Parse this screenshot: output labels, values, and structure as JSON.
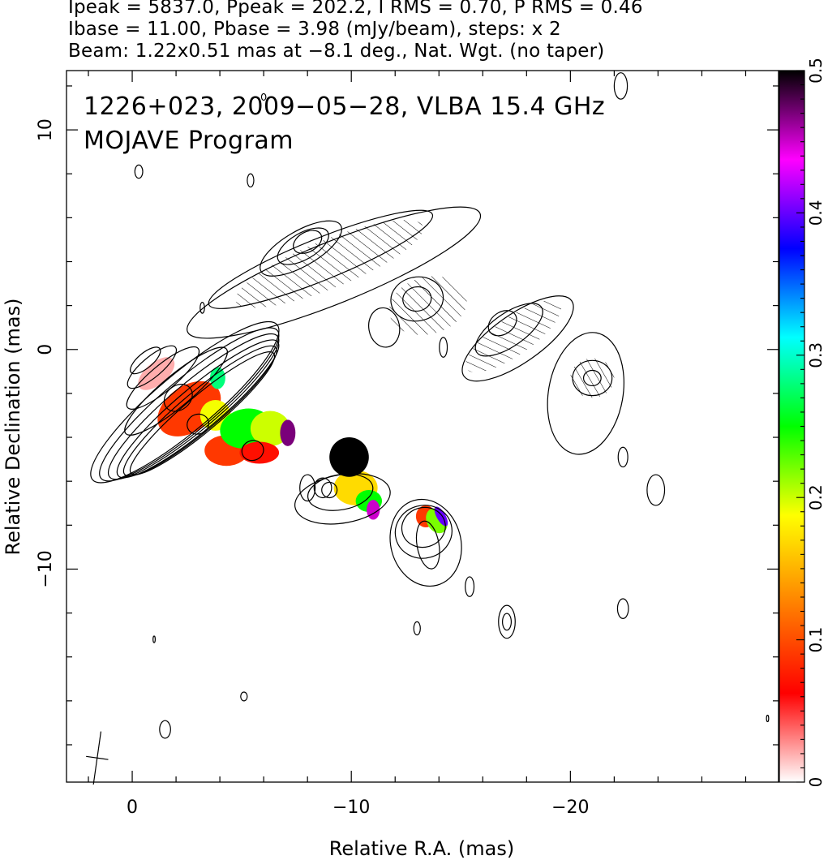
{
  "header": {
    "line1": "Ipeak = 5837.0, Ppeak = 202.2, I RMS = 0.70, P RMS = 0.46",
    "line2": "Ibase = 11.00, Pbase = 3.98 (mJy/beam), steps: x 2",
    "line3": "Beam: 1.22x0.51 mas at −8.1 deg., Nat. Wgt. (no taper)"
  },
  "chart_data": {
    "type": "heatmap",
    "title_line1": "1226+023, 2009−05−28, VLBA 15.4 GHz",
    "title_line2": "MOJAVE Program",
    "xlabel": "Relative R.A. (mas)",
    "ylabel": "Relative Declination (mas)",
    "xlim": [
      3,
      -29.5
    ],
    "ylim": [
      -19.7,
      12.7
    ],
    "x_ticks": [
      {
        "value": 0,
        "label": "0"
      },
      {
        "value": -10,
        "label": "−10"
      },
      {
        "value": -20,
        "label": "−20"
      }
    ],
    "y_ticks": [
      {
        "value": 10,
        "label": "10"
      },
      {
        "value": 0,
        "label": "0"
      },
      {
        "value": -10,
        "label": "−10"
      }
    ],
    "colorbar": {
      "range": [
        0,
        0.5
      ],
      "ticks": [
        {
          "value": 0,
          "label": "0"
        },
        {
          "value": 0.1,
          "label": "0.1"
        },
        {
          "value": 0.2,
          "label": "0.2"
        },
        {
          "value": 0.3,
          "label": "0.3"
        },
        {
          "value": 0.4,
          "label": "0.4"
        },
        {
          "value": 0.5,
          "label": "0.5"
        }
      ],
      "colors": [
        "#ffffff",
        "#ff0000",
        "#ff8000",
        "#ffff00",
        "#00ff00",
        "#00ffff",
        "#0000ff",
        "#ff00ff",
        "#000000"
      ]
    },
    "main_jet_contours": [
      {
        "cx": -2.4,
        "cy": -2.4,
        "rx": 5.5,
        "ry": 1.3,
        "angle": -40
      },
      {
        "cx": -2.6,
        "cy": -2.5,
        "rx": 5.25,
        "ry": 1.18,
        "angle": -40
      },
      {
        "cx": -2.8,
        "cy": -2.6,
        "rx": 5.0,
        "ry": 1.07,
        "angle": -40
      },
      {
        "cx": -3.0,
        "cy": -2.7,
        "rx": 4.75,
        "ry": 0.97,
        "angle": -40
      },
      {
        "cx": -3.1,
        "cy": -2.8,
        "rx": 4.5,
        "ry": 0.88,
        "angle": -40
      },
      {
        "cx": -3.2,
        "cy": -2.9,
        "rx": 4.25,
        "ry": 0.8,
        "angle": -40
      },
      {
        "cx": -2.0,
        "cy": -1.9,
        "rx": 3.0,
        "ry": 0.7,
        "angle": -40
      },
      {
        "cx": -1.4,
        "cy": -1.3,
        "rx": 2.1,
        "ry": 0.58,
        "angle": -40
      },
      {
        "cx": -0.9,
        "cy": -0.8,
        "rx": 1.4,
        "ry": 0.46,
        "angle": -40
      },
      {
        "cx": -0.6,
        "cy": -0.5,
        "rx": 0.85,
        "ry": 0.34,
        "angle": -40
      },
      {
        "cx": -2.1,
        "cy": -2.2,
        "rx": 0.7,
        "ry": 0.55,
        "angle": -40
      },
      {
        "cx": -3.0,
        "cy": -3.4,
        "rx": 0.5,
        "ry": 0.45,
        "angle": -20
      },
      {
        "cx": -5.5,
        "cy": -4.6,
        "rx": 0.5,
        "ry": 0.45,
        "angle": -20
      }
    ],
    "upper_jet_contours": [
      {
        "cx": -9.2,
        "cy": 3.5,
        "rx": 7.2,
        "ry": 1.4,
        "angle": -22
      },
      {
        "cx": -8.6,
        "cy": 4.1,
        "rx": 5.5,
        "ry": 0.95,
        "angle": -22
      },
      {
        "cx": -7.7,
        "cy": 4.6,
        "rx": 2.1,
        "ry": 0.8,
        "angle": -30
      },
      {
        "cx": -7.8,
        "cy": 4.7,
        "rx": 1.3,
        "ry": 0.6,
        "angle": -30
      },
      {
        "cx": -8.0,
        "cy": 4.9,
        "rx": 0.7,
        "ry": 0.45,
        "angle": -30
      },
      {
        "cx": -13.0,
        "cy": 2.3,
        "rx": 1.2,
        "ry": 1.0,
        "angle": -10
      },
      {
        "cx": -13.0,
        "cy": 2.3,
        "rx": 0.65,
        "ry": 0.55,
        "angle": -10
      },
      {
        "cx": -11.5,
        "cy": 1.0,
        "rx": 0.7,
        "ry": 0.9,
        "angle": -10
      },
      {
        "cx": -17.6,
        "cy": 0.5,
        "rx": 3.0,
        "ry": 1.1,
        "angle": -35
      },
      {
        "cx": -17.2,
        "cy": 0.9,
        "rx": 1.8,
        "ry": 0.75,
        "angle": -35
      },
      {
        "cx": -16.9,
        "cy": 1.2,
        "rx": 0.7,
        "ry": 0.5,
        "angle": -35
      },
      {
        "cx": -20.7,
        "cy": -2.0,
        "rx": 1.7,
        "ry": 2.8,
        "angle": 10
      },
      {
        "cx": -21.0,
        "cy": -1.3,
        "rx": 0.9,
        "ry": 0.8,
        "angle": 0
      },
      {
        "cx": -21.0,
        "cy": -1.3,
        "rx": 0.4,
        "ry": 0.35,
        "angle": 0
      }
    ],
    "middle_knot_contours": [
      {
        "cx": -9.6,
        "cy": -6.8,
        "rx": 2.2,
        "ry": 1.1,
        "angle": -10
      },
      {
        "cx": -9.5,
        "cy": -6.5,
        "rx": 1.5,
        "ry": 0.8,
        "angle": -10
      },
      {
        "cx": -9.0,
        "cy": -6.4,
        "rx": 0.35,
        "ry": 0.35,
        "angle": 0
      },
      {
        "cx": -8.0,
        "cy": -6.3,
        "rx": 0.35,
        "ry": 0.6,
        "angle": 0
      }
    ],
    "lower_knot_contours": [
      {
        "cx": -13.4,
        "cy": -8.8,
        "rx": 1.6,
        "ry": 2.0,
        "angle": -15
      },
      {
        "cx": -13.3,
        "cy": -8.3,
        "rx": 1.3,
        "ry": 1.2,
        "angle": -15
      },
      {
        "cx": -13.3,
        "cy": -8.1,
        "rx": 1.0,
        "ry": 0.9,
        "angle": -15
      },
      {
        "cx": -13.5,
        "cy": -8.9,
        "rx": 0.5,
        "ry": 1.1,
        "angle": -10
      }
    ],
    "small_contours": [
      {
        "cx": -0.3,
        "cy": 8.1,
        "rx": 0.18,
        "ry": 0.3
      },
      {
        "cx": -5.4,
        "cy": 7.7,
        "rx": 0.15,
        "ry": 0.3
      },
      {
        "cx": -3.2,
        "cy": 1.9,
        "rx": 0.1,
        "ry": 0.25
      },
      {
        "cx": -14.2,
        "cy": 0.1,
        "rx": 0.18,
        "ry": 0.45
      },
      {
        "cx": -22.4,
        "cy": -4.9,
        "rx": 0.22,
        "ry": 0.45
      },
      {
        "cx": -23.9,
        "cy": -6.4,
        "rx": 0.4,
        "ry": 0.7
      },
      {
        "cx": -15.4,
        "cy": -10.8,
        "rx": 0.2,
        "ry": 0.45
      },
      {
        "cx": -17.1,
        "cy": -12.4,
        "rx": 0.38,
        "ry": 0.75
      },
      {
        "cx": -17.1,
        "cy": -12.4,
        "rx": 0.2,
        "ry": 0.38
      },
      {
        "cx": -13.0,
        "cy": -12.7,
        "rx": 0.15,
        "ry": 0.3
      },
      {
        "cx": -22.4,
        "cy": -11.8,
        "rx": 0.25,
        "ry": 0.45
      },
      {
        "cx": -22.3,
        "cy": 12.0,
        "rx": 0.3,
        "ry": 0.6
      },
      {
        "cx": -6.0,
        "cy": 11.5,
        "rx": 0.1,
        "ry": 0.15
      },
      {
        "cx": -1.5,
        "cy": -17.3,
        "rx": 0.25,
        "ry": 0.4
      },
      {
        "cx": -5.1,
        "cy": -15.8,
        "rx": 0.15,
        "ry": 0.2
      },
      {
        "cx": -1.0,
        "cy": -13.2,
        "rx": 0.05,
        "ry": 0.15
      },
      {
        "cx": -29.0,
        "cy": -16.8,
        "rx": 0.05,
        "ry": 0.15
      },
      {
        "cx": -8.7,
        "cy": -6.3,
        "rx": 0.4,
        "ry": 0.45
      }
    ],
    "polarization_patches": [
      {
        "cx": -1.1,
        "cy": -1.1,
        "rx": 1.0,
        "ry": 0.5,
        "angle": -40,
        "value": 0.02
      },
      {
        "cx": -2.6,
        "cy": -2.7,
        "rx": 1.6,
        "ry": 1.05,
        "angle": -35,
        "value": 0.09
      },
      {
        "cx": -4.3,
        "cy": -4.6,
        "rx": 1.0,
        "ry": 0.7,
        "angle": 0,
        "value": 0.09
      },
      {
        "cx": -3.8,
        "cy": -3.0,
        "rx": 0.7,
        "ry": 0.7,
        "angle": 0,
        "value": 0.19
      },
      {
        "cx": -5.2,
        "cy": -3.6,
        "rx": 1.2,
        "ry": 0.9,
        "angle": -10,
        "value": 0.25
      },
      {
        "cx": -6.3,
        "cy": -3.6,
        "rx": 0.9,
        "ry": 0.8,
        "angle": 0,
        "value": 0.2
      },
      {
        "cx": -5.8,
        "cy": -4.7,
        "rx": 0.9,
        "ry": 0.5,
        "angle": 0,
        "value": 0.07
      },
      {
        "cx": -7.1,
        "cy": -3.8,
        "rx": 0.35,
        "ry": 0.6,
        "angle": 0,
        "value": 0.47
      },
      {
        "cx": -3.9,
        "cy": -1.3,
        "rx": 0.35,
        "ry": 0.5,
        "angle": 0,
        "value": 0.28
      },
      {
        "cx": -10.2,
        "cy": -6.3,
        "rx": 1.0,
        "ry": 0.8,
        "angle": 0,
        "value": 0.17
      },
      {
        "cx": -10.8,
        "cy": -6.9,
        "rx": 0.6,
        "ry": 0.5,
        "angle": 0,
        "value": 0.25
      },
      {
        "cx": -9.9,
        "cy": -4.9,
        "rx": 0.9,
        "ry": 0.9,
        "angle": 0,
        "value": 0.5
      },
      {
        "cx": -11.0,
        "cy": -7.3,
        "rx": 0.3,
        "ry": 0.45,
        "angle": 0,
        "value": 0.45
      },
      {
        "cx": -13.4,
        "cy": -7.6,
        "rx": 0.45,
        "ry": 0.5,
        "angle": 0,
        "value": 0.09
      },
      {
        "cx": -13.9,
        "cy": -7.8,
        "rx": 0.45,
        "ry": 0.6,
        "angle": -30,
        "value": 0.22
      },
      {
        "cx": -14.1,
        "cy": -7.6,
        "rx": 0.2,
        "ry": 0.5,
        "angle": -30,
        "value": 0.4
      }
    ],
    "hatch_regions": [
      {
        "cx": -9.0,
        "cy": 3.9,
        "rx": 4.6,
        "ry": 1.1,
        "angle": -22
      },
      {
        "cx": -13.5,
        "cy": 2.0,
        "rx": 1.8,
        "ry": 1.3,
        "angle": -15
      },
      {
        "cx": -17.4,
        "cy": 0.6,
        "rx": 2.6,
        "ry": 0.85,
        "angle": -35
      },
      {
        "cx": -21.0,
        "cy": -1.3,
        "rx": 1.0,
        "ry": 0.9,
        "angle": 0
      }
    ],
    "beam": {
      "major": 1.22,
      "minor": 0.51,
      "pa": -8.1,
      "x": 1.6,
      "y": -18.6
    }
  }
}
